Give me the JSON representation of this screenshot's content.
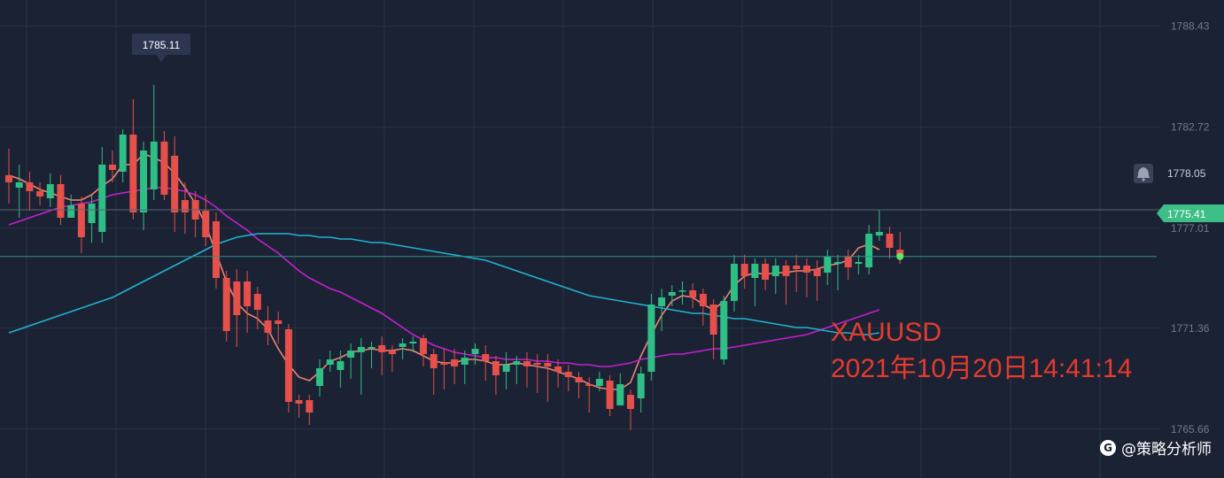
{
  "colors": {
    "background": "#1b2234",
    "grid": "#2a3246",
    "up": "#2fbf86",
    "down": "#e5504a",
    "ma_short": "#ee8574",
    "ma_mid": "#c41fd0",
    "ma_long": "#1fb4cf",
    "current_price_tag": "#3cbf86",
    "annotation": "#e63b2e"
  },
  "icons": {
    "alert": "bell-icon",
    "watermark": "logo-icon"
  },
  "chart_data": {
    "type": "candlestick",
    "symbol": "XAUUSD",
    "timestamp": "2021年10月20日14:41:14",
    "y_axis": {
      "ticks": [
        "1788.43",
        "1782.72",
        "1777.01",
        "1771.36",
        "1765.66"
      ],
      "range": [
        1763.9,
        1789.5
      ]
    },
    "high_marker": {
      "label": "1785.11",
      "value": 1785.11
    },
    "alert_line": {
      "label": "1778.05",
      "value": 1778.05
    },
    "current_price": {
      "label": "1775.41",
      "value": 1775.41
    },
    "candles": [
      [
        1780.0,
        1779.6,
        1781.5,
        1778.4
      ],
      [
        1779.3,
        1779.6,
        1780.6,
        1777.6
      ],
      [
        1779.6,
        1779.1,
        1780.2,
        1778.0
      ],
      [
        1779.1,
        1778.8,
        1779.6,
        1778.3
      ],
      [
        1778.7,
        1779.5,
        1780.1,
        1778.2
      ],
      [
        1779.5,
        1777.6,
        1780.0,
        1777.2
      ],
      [
        1777.6,
        1778.3,
        1778.9,
        1777.6
      ],
      [
        1778.4,
        1776.5,
        1778.8,
        1775.6
      ],
      [
        1777.3,
        1778.4,
        1778.9,
        1776.2
      ],
      [
        1776.8,
        1780.6,
        1781.6,
        1776.2
      ],
      [
        1780.6,
        1780.3,
        1781.4,
        1779.6
      ],
      [
        1780.2,
        1782.3,
        1782.6,
        1779.6
      ],
      [
        1782.3,
        1777.9,
        1784.3,
        1777.5
      ],
      [
        1777.9,
        1781.4,
        1781.9,
        1776.9
      ],
      [
        1779.2,
        1781.9,
        1785.11,
        1778.6
      ],
      [
        1781.9,
        1778.9,
        1782.5,
        1778.6
      ],
      [
        1781.1,
        1777.9,
        1782.2,
        1776.8
      ],
      [
        1778.6,
        1777.9,
        1779.6,
        1776.7
      ],
      [
        1778.6,
        1777.5,
        1779.1,
        1776.5
      ],
      [
        1778.0,
        1776.5,
        1778.9,
        1776.0
      ],
      [
        1777.4,
        1774.2,
        1777.9,
        1773.6
      ],
      [
        1774.2,
        1771.2,
        1774.6,
        1770.6
      ],
      [
        1774.0,
        1772.1,
        1774.7,
        1770.3
      ],
      [
        1774.0,
        1772.6,
        1774.6,
        1771.1
      ],
      [
        1773.3,
        1772.4,
        1773.7,
        1771.3
      ],
      [
        1771.8,
        1771.1,
        1772.6,
        1770.4
      ],
      [
        1771.8,
        1771.6,
        1772.3,
        1770.5
      ],
      [
        1771.3,
        1767.2,
        1771.6,
        1766.6
      ],
      [
        1767.3,
        1767.1,
        1767.6,
        1766.3
      ],
      [
        1767.3,
        1766.6,
        1767.6,
        1765.9
      ],
      [
        1768.1,
        1769.1,
        1769.6,
        1767.5
      ],
      [
        1769.3,
        1769.6,
        1770.1,
        1768.9
      ],
      [
        1769.0,
        1769.5,
        1770.1,
        1768.0
      ],
      [
        1769.7,
        1770.1,
        1770.5,
        1768.5
      ],
      [
        1770.0,
        1770.3,
        1770.8,
        1767.6
      ],
      [
        1770.3,
        1770.3,
        1770.6,
        1769.1
      ],
      [
        1770.4,
        1770.0,
        1770.9,
        1768.7
      ],
      [
        1770.1,
        1769.9,
        1770.4,
        1768.9
      ],
      [
        1770.3,
        1770.5,
        1770.8,
        1769.6
      ],
      [
        1770.5,
        1770.6,
        1770.9,
        1770.0
      ],
      [
        1770.8,
        1769.9,
        1771.0,
        1769.2
      ],
      [
        1769.9,
        1769.1,
        1770.2,
        1767.6
      ],
      [
        1769.4,
        1769.3,
        1770.2,
        1767.9
      ],
      [
        1769.6,
        1769.2,
        1770.2,
        1768.2
      ],
      [
        1769.3,
        1769.7,
        1770.1,
        1768.2
      ],
      [
        1769.9,
        1770.2,
        1770.5,
        1769.3
      ],
      [
        1769.9,
        1769.5,
        1770.4,
        1768.4
      ],
      [
        1769.5,
        1768.7,
        1769.8,
        1767.6
      ],
      [
        1768.9,
        1769.3,
        1770.0,
        1767.9
      ],
      [
        1769.3,
        1769.5,
        1769.8,
        1768.2
      ],
      [
        1769.5,
        1769.2,
        1770.0,
        1768.0
      ],
      [
        1769.4,
        1769.3,
        1769.9,
        1767.7
      ],
      [
        1769.4,
        1769.2,
        1769.9,
        1767.2
      ],
      [
        1769.2,
        1768.9,
        1769.6,
        1768.0
      ],
      [
        1768.9,
        1768.6,
        1769.3,
        1767.8
      ],
      [
        1768.6,
        1768.3,
        1768.9,
        1767.4
      ],
      [
        1768.2,
        1768.1,
        1768.6,
        1766.6
      ],
      [
        1768.1,
        1768.5,
        1768.9,
        1767.8
      ],
      [
        1768.4,
        1766.8,
        1768.7,
        1766.4
      ],
      [
        1767.0,
        1768.2,
        1768.8,
        1767.4
      ],
      [
        1767.6,
        1766.8,
        1767.9,
        1765.6
      ],
      [
        1767.4,
        1768.8,
        1769.2,
        1766.6
      ],
      [
        1768.9,
        1772.7,
        1773.3,
        1768.4
      ],
      [
        1772.6,
        1773.1,
        1773.6,
        1771.2
      ],
      [
        1773.2,
        1773.4,
        1773.8,
        1772.6
      ],
      [
        1773.5,
        1773.5,
        1774.0,
        1772.7
      ],
      [
        1773.5,
        1773.1,
        1773.9,
        1772.5
      ],
      [
        1773.3,
        1772.6,
        1773.6,
        1771.5
      ],
      [
        1772.7,
        1771.0,
        1773.0,
        1769.6
      ],
      [
        1769.6,
        1772.9,
        1773.2,
        1769.3
      ],
      [
        1772.9,
        1775.0,
        1775.5,
        1772.3
      ],
      [
        1775.0,
        1774.3,
        1775.5,
        1773.6
      ],
      [
        1774.2,
        1775.0,
        1775.3,
        1772.6
      ],
      [
        1775.0,
        1774.1,
        1775.3,
        1773.5
      ],
      [
        1774.3,
        1774.9,
        1775.3,
        1773.3
      ],
      [
        1774.9,
        1774.3,
        1775.2,
        1772.7
      ],
      [
        1774.9,
        1774.7,
        1775.5,
        1773.4
      ],
      [
        1774.9,
        1774.5,
        1775.3,
        1773.1
      ],
      [
        1774.7,
        1774.3,
        1775.2,
        1772.9
      ],
      [
        1774.5,
        1775.4,
        1775.8,
        1773.8
      ],
      [
        1775.0,
        1775.1,
        1775.5,
        1773.5
      ],
      [
        1775.4,
        1774.8,
        1775.8,
        1774.1
      ],
      [
        1775.0,
        1775.1,
        1775.5,
        1774.4
      ],
      [
        1774.8,
        1776.7,
        1777.2,
        1774.4
      ],
      [
        1776.6,
        1776.8,
        1778.05,
        1776.3
      ],
      [
        1776.7,
        1775.9,
        1777.1,
        1775.3
      ],
      [
        1775.8,
        1775.41,
        1776.8,
        1775.0
      ]
    ],
    "ma_short": [
      1780.0,
      1779.8,
      1779.5,
      1779.2,
      1779.0,
      1778.8,
      1778.6,
      1778.6,
      1778.9,
      1779.4,
      1779.8,
      1780.6,
      1780.6,
      1781.2,
      1781.0,
      1780.7,
      1780.1,
      1779.3,
      1778.4,
      1777.2,
      1775.6,
      1774.0,
      1772.8,
      1772.2,
      1771.9,
      1771.3,
      1770.2,
      1769.3,
      1768.6,
      1768.4,
      1768.9,
      1769.5,
      1769.7,
      1770.0,
      1770.1,
      1770.2,
      1770.1,
      1770.1,
      1770.2,
      1770.1,
      1769.8,
      1769.5,
      1769.4,
      1769.4,
      1769.6,
      1769.6,
      1769.5,
      1769.3,
      1769.3,
      1769.4,
      1769.3,
      1769.2,
      1769.1,
      1768.9,
      1768.7,
      1768.5,
      1768.2,
      1768.0,
      1767.9,
      1767.9,
      1768.3,
      1769.8,
      1771.0,
      1772.1,
      1772.9,
      1773.2,
      1773.1,
      1772.7,
      1772.4,
      1772.9,
      1773.8,
      1774.3,
      1774.5,
      1774.4,
      1774.5,
      1774.5,
      1774.6,
      1774.6,
      1774.7,
      1774.9,
      1775.0,
      1775.2,
      1775.9,
      1776.1,
      1775.8
    ],
    "ma_mid": [
      1777.2,
      1777.4,
      1777.6,
      1777.8,
      1778.0,
      1778.2,
      1778.3,
      1778.4,
      1778.5,
      1778.7,
      1778.9,
      1779.0,
      1779.1,
      1779.2,
      1779.3,
      1779.3,
      1779.2,
      1779.1,
      1778.9,
      1778.6,
      1778.2,
      1777.7,
      1777.3,
      1776.9,
      1776.4,
      1776.0,
      1775.6,
      1775.1,
      1774.6,
      1774.2,
      1773.9,
      1773.6,
      1773.4,
      1773.1,
      1772.8,
      1772.5,
      1772.2,
      1771.8,
      1771.4,
      1771.0,
      1770.7,
      1770.4,
      1770.2,
      1770.0,
      1769.9,
      1769.8,
      1769.7,
      1769.7,
      1769.6,
      1769.6,
      1769.6,
      1769.5,
      1769.5,
      1769.4,
      1769.4,
      1769.3,
      1769.3,
      1769.2,
      1769.2,
      1769.3,
      1769.4,
      1769.6,
      1769.7,
      1769.8,
      1769.9,
      1769.9,
      1770.0,
      1770.1,
      1770.2,
      1770.2,
      1770.3,
      1770.4,
      1770.5,
      1770.6,
      1770.7,
      1770.8,
      1770.9,
      1771.0,
      1771.2,
      1771.4,
      1771.6,
      1771.8,
      1772.0,
      1772.2,
      1772.4
    ],
    "ma_long": [
      1771.1,
      1771.3,
      1771.5,
      1771.7,
      1771.9,
      1772.1,
      1772.3,
      1772.5,
      1772.7,
      1772.9,
      1773.1,
      1773.4,
      1773.7,
      1774.0,
      1774.3,
      1774.6,
      1774.9,
      1775.2,
      1775.5,
      1775.8,
      1776.1,
      1776.3,
      1776.5,
      1776.6,
      1776.7,
      1776.7,
      1776.7,
      1776.7,
      1776.6,
      1776.6,
      1776.5,
      1776.5,
      1776.4,
      1776.4,
      1776.3,
      1776.2,
      1776.2,
      1776.1,
      1776.0,
      1775.9,
      1775.8,
      1775.7,
      1775.6,
      1775.5,
      1775.4,
      1775.3,
      1775.2,
      1775.0,
      1774.8,
      1774.6,
      1774.4,
      1774.2,
      1774.0,
      1773.8,
      1773.6,
      1773.4,
      1773.2,
      1773.1,
      1773.0,
      1772.9,
      1772.8,
      1772.7,
      1772.6,
      1772.5,
      1772.4,
      1772.3,
      1772.2,
      1772.2,
      1772.1,
      1772.0,
      1771.9,
      1771.9,
      1771.8,
      1771.7,
      1771.6,
      1771.5,
      1771.4,
      1771.4,
      1771.3,
      1771.2,
      1771.1,
      1771.1,
      1771.0,
      1771.0,
      1771.1
    ]
  },
  "watermark": {
    "text": "@策略分析师",
    "icon_glyph": "G"
  }
}
